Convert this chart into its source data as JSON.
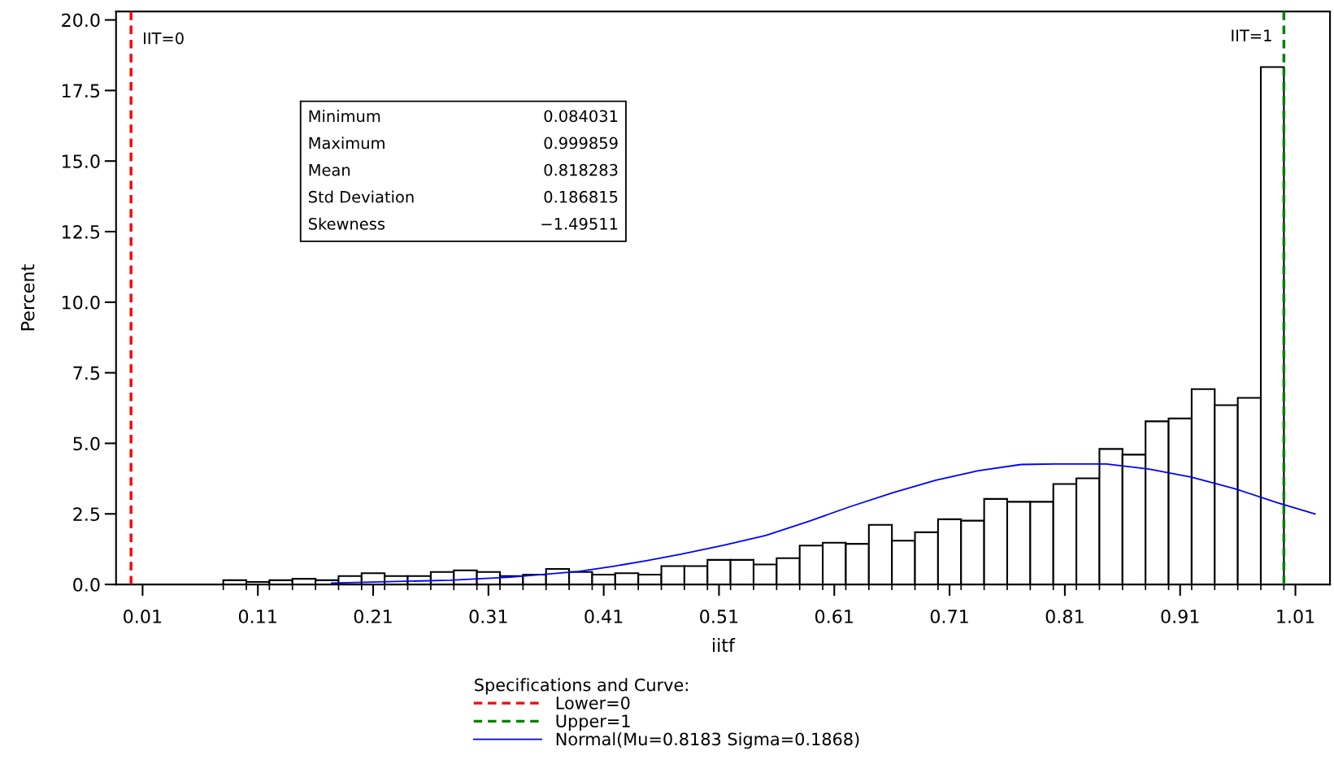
{
  "chart_data": {
    "type": "histogram",
    "xlabel": "iitf",
    "ylabel": "Percent",
    "legend_title": "Specifications and Curve:",
    "bins": [
      0.08,
      0.1,
      0.12,
      0.14,
      0.16,
      0.18,
      0.2,
      0.22,
      0.24,
      0.26,
      0.28,
      0.3,
      0.32,
      0.34,
      0.36,
      0.38,
      0.4,
      0.42,
      0.44,
      0.46,
      0.48,
      0.5,
      0.52,
      0.54,
      0.56,
      0.58,
      0.6,
      0.62,
      0.64,
      0.66,
      0.68,
      0.7,
      0.72,
      0.74,
      0.76,
      0.78,
      0.8,
      0.82,
      0.84,
      0.86,
      0.88,
      0.9,
      0.92,
      0.94,
      0.96,
      0.98,
      1.0
    ],
    "values": [
      0.15,
      0.09,
      0.15,
      0.2,
      0.15,
      0.3,
      0.4,
      0.3,
      0.3,
      0.44,
      0.5,
      0.44,
      0.3,
      0.35,
      0.55,
      0.44,
      0.35,
      0.4,
      0.35,
      0.65,
      0.65,
      0.87,
      0.87,
      0.71,
      0.93,
      1.38,
      1.48,
      1.44,
      2.11,
      1.55,
      1.85,
      2.31,
      2.26,
      3.03,
      2.93,
      2.93,
      3.56,
      3.76,
      4.8,
      4.6,
      5.78,
      5.88,
      6.92,
      6.35,
      6.61,
      18.33
    ],
    "color": "#ffffff",
    "series": [
      {
        "type": "line",
        "name": "Normal(Mu=0.8183 Sigma=0.1868)",
        "color": "#0000ff",
        "x": [
          0.174,
          0.277,
          0.329,
          0.388,
          0.418,
          0.447,
          0.477,
          0.514,
          0.551,
          0.588,
          0.624,
          0.661,
          0.698,
          0.735,
          0.772,
          0.802,
          0.846,
          0.883,
          0.92,
          0.957,
          0.994,
          1.027
        ],
        "values": [
          0.05,
          0.15,
          0.26,
          0.46,
          0.64,
          0.84,
          1.07,
          1.39,
          1.74,
          2.24,
          2.76,
          3.25,
          3.69,
          4.03,
          4.25,
          4.27,
          4.27,
          4.09,
          3.8,
          3.4,
          2.9,
          2.5
        ]
      }
    ],
    "ref_lines": [
      {
        "axis": "x",
        "value": 0,
        "label": "Lower=0",
        "color": "#ff0000",
        "line_style": "dashed"
      },
      {
        "axis": "x",
        "value": 1,
        "label": "Upper=1",
        "color": "#008000",
        "line_style": "dashed"
      }
    ],
    "annotations": [
      {
        "text": "IIT=0",
        "x": 0,
        "y": 19.3
      },
      {
        "text": "IIT=1",
        "x": 1,
        "y": 19.4
      },
      "Minimum 0.084031",
      "Maximum 0.999859",
      "Mean 0.818283",
      "Std Deviation 0.186815",
      "Skewness −1.49511"
    ],
    "xlim": [
      -0.013,
      1.04
    ],
    "ylim": [
      0,
      20.3
    ],
    "xticks": [
      {
        "value": 0.01,
        "label": "0.01"
      },
      {
        "value": 0.11,
        "label": "0.11"
      },
      {
        "value": 0.21,
        "label": "0.21"
      },
      {
        "value": 0.31,
        "label": "0.31"
      },
      {
        "value": 0.41,
        "label": "0.41"
      },
      {
        "value": 0.51,
        "label": "0.51"
      },
      {
        "value": 0.61,
        "label": "0.61"
      },
      {
        "value": 0.71,
        "label": "0.71"
      },
      {
        "value": 0.81,
        "label": "0.81"
      },
      {
        "value": 0.91,
        "label": "0.91"
      },
      {
        "value": 1.01,
        "label": "1.01"
      }
    ],
    "yticks": [
      {
        "value": 0,
        "label": "0.0"
      },
      {
        "value": 2.5,
        "label": "2.5"
      },
      {
        "value": 5,
        "label": "5.0"
      },
      {
        "value": 7.5,
        "label": "7.5"
      },
      {
        "value": 10,
        "label": "10.0"
      },
      {
        "value": 12.5,
        "label": "12.5"
      },
      {
        "value": 15,
        "label": "15.0"
      },
      {
        "value": 17.5,
        "label": "17.5"
      },
      {
        "value": 20,
        "label": "20.0"
      }
    ],
    "legend": "bottom",
    "grid": false
  }
}
